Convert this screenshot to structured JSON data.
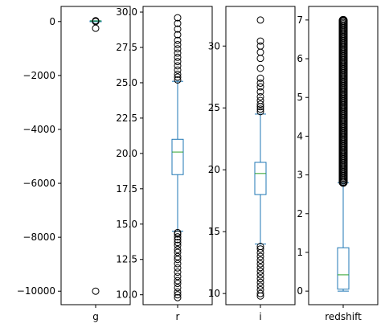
{
  "chart_data": {
    "type": "box",
    "colors": {
      "box": "#1f77b4",
      "median": "#2ca02c",
      "flier": "#000000",
      "frame": "#000000"
    },
    "panels": [
      {
        "label": "g",
        "ylim": [
          -10500,
          560
        ],
        "yticks": [
          0,
          -2000,
          -4000,
          -6000,
          -8000,
          -10000
        ],
        "ytick_labels": [
          "0",
          "−2000",
          "−4000",
          "−6000",
          "−8000",
          "−10000"
        ],
        "box": {
          "whisker_low": 14,
          "q1": 20,
          "median": 21.5,
          "q3": 23,
          "whisker_high": 30
        },
        "outliers": [
          -250,
          -9999,
          0,
          10,
          30
        ]
      },
      {
        "label": "r",
        "ylim": [
          9.3,
          30.4
        ],
        "yticks": [
          10.0,
          12.5,
          15.0,
          17.5,
          20.0,
          22.5,
          25.0,
          27.5,
          30.0
        ],
        "ytick_labels": [
          "10.0",
          "12.5",
          "15.0",
          "17.5",
          "20.0",
          "22.5",
          "25.0",
          "27.5",
          "30.0"
        ],
        "box": {
          "whisker_low": 14.5,
          "q1": 18.5,
          "median": 20.1,
          "q3": 21.0,
          "whisker_high": 25.1
        },
        "outliers": [
          9.8,
          10.0,
          10.2,
          10.5,
          10.8,
          11.0,
          11.3,
          11.6,
          11.9,
          12.2,
          12.5,
          12.7,
          13.0,
          13.2,
          13.5,
          13.7,
          13.9,
          14.1,
          14.3,
          14.4,
          25.2,
          25.4,
          25.6,
          25.9,
          26.2,
          26.5,
          26.8,
          27.1,
          27.4,
          27.7,
          28.0,
          28.4,
          28.8,
          29.2,
          29.6
        ]
      },
      {
        "label": "i",
        "ylim": [
          9.1,
          33.2
        ],
        "yticks": [
          10,
          15,
          20,
          25,
          30
        ],
        "ytick_labels": [
          "10",
          "15",
          "20",
          "25",
          "30"
        ],
        "box": {
          "whisker_low": 14.0,
          "q1": 18.0,
          "median": 19.7,
          "q3": 20.6,
          "whisker_high": 24.5
        },
        "outliers": [
          9.8,
          10.0,
          10.3,
          10.6,
          10.9,
          11.2,
          11.5,
          11.8,
          12.1,
          12.4,
          12.7,
          13.0,
          13.3,
          13.6,
          13.8,
          24.7,
          24.9,
          25.1,
          25.3,
          25.6,
          25.9,
          26.3,
          26.7,
          27.0,
          27.4,
          28.2,
          29.0,
          29.5,
          30.0,
          30.4,
          32.1
        ]
      },
      {
        "label": "redshift",
        "ylim": [
          -0.35,
          7.35
        ],
        "yticks": [
          0,
          1,
          2,
          3,
          4,
          5,
          6,
          7
        ],
        "ytick_labels": [
          "0",
          "1",
          "2",
          "3",
          "4",
          "5",
          "6",
          "7"
        ],
        "box": {
          "whisker_low": 0.0,
          "q1": 0.05,
          "median": 0.42,
          "q3": 1.12,
          "whisker_high": 2.8
        },
        "outlier_band": [
          2.8,
          7.0
        ]
      }
    ]
  }
}
